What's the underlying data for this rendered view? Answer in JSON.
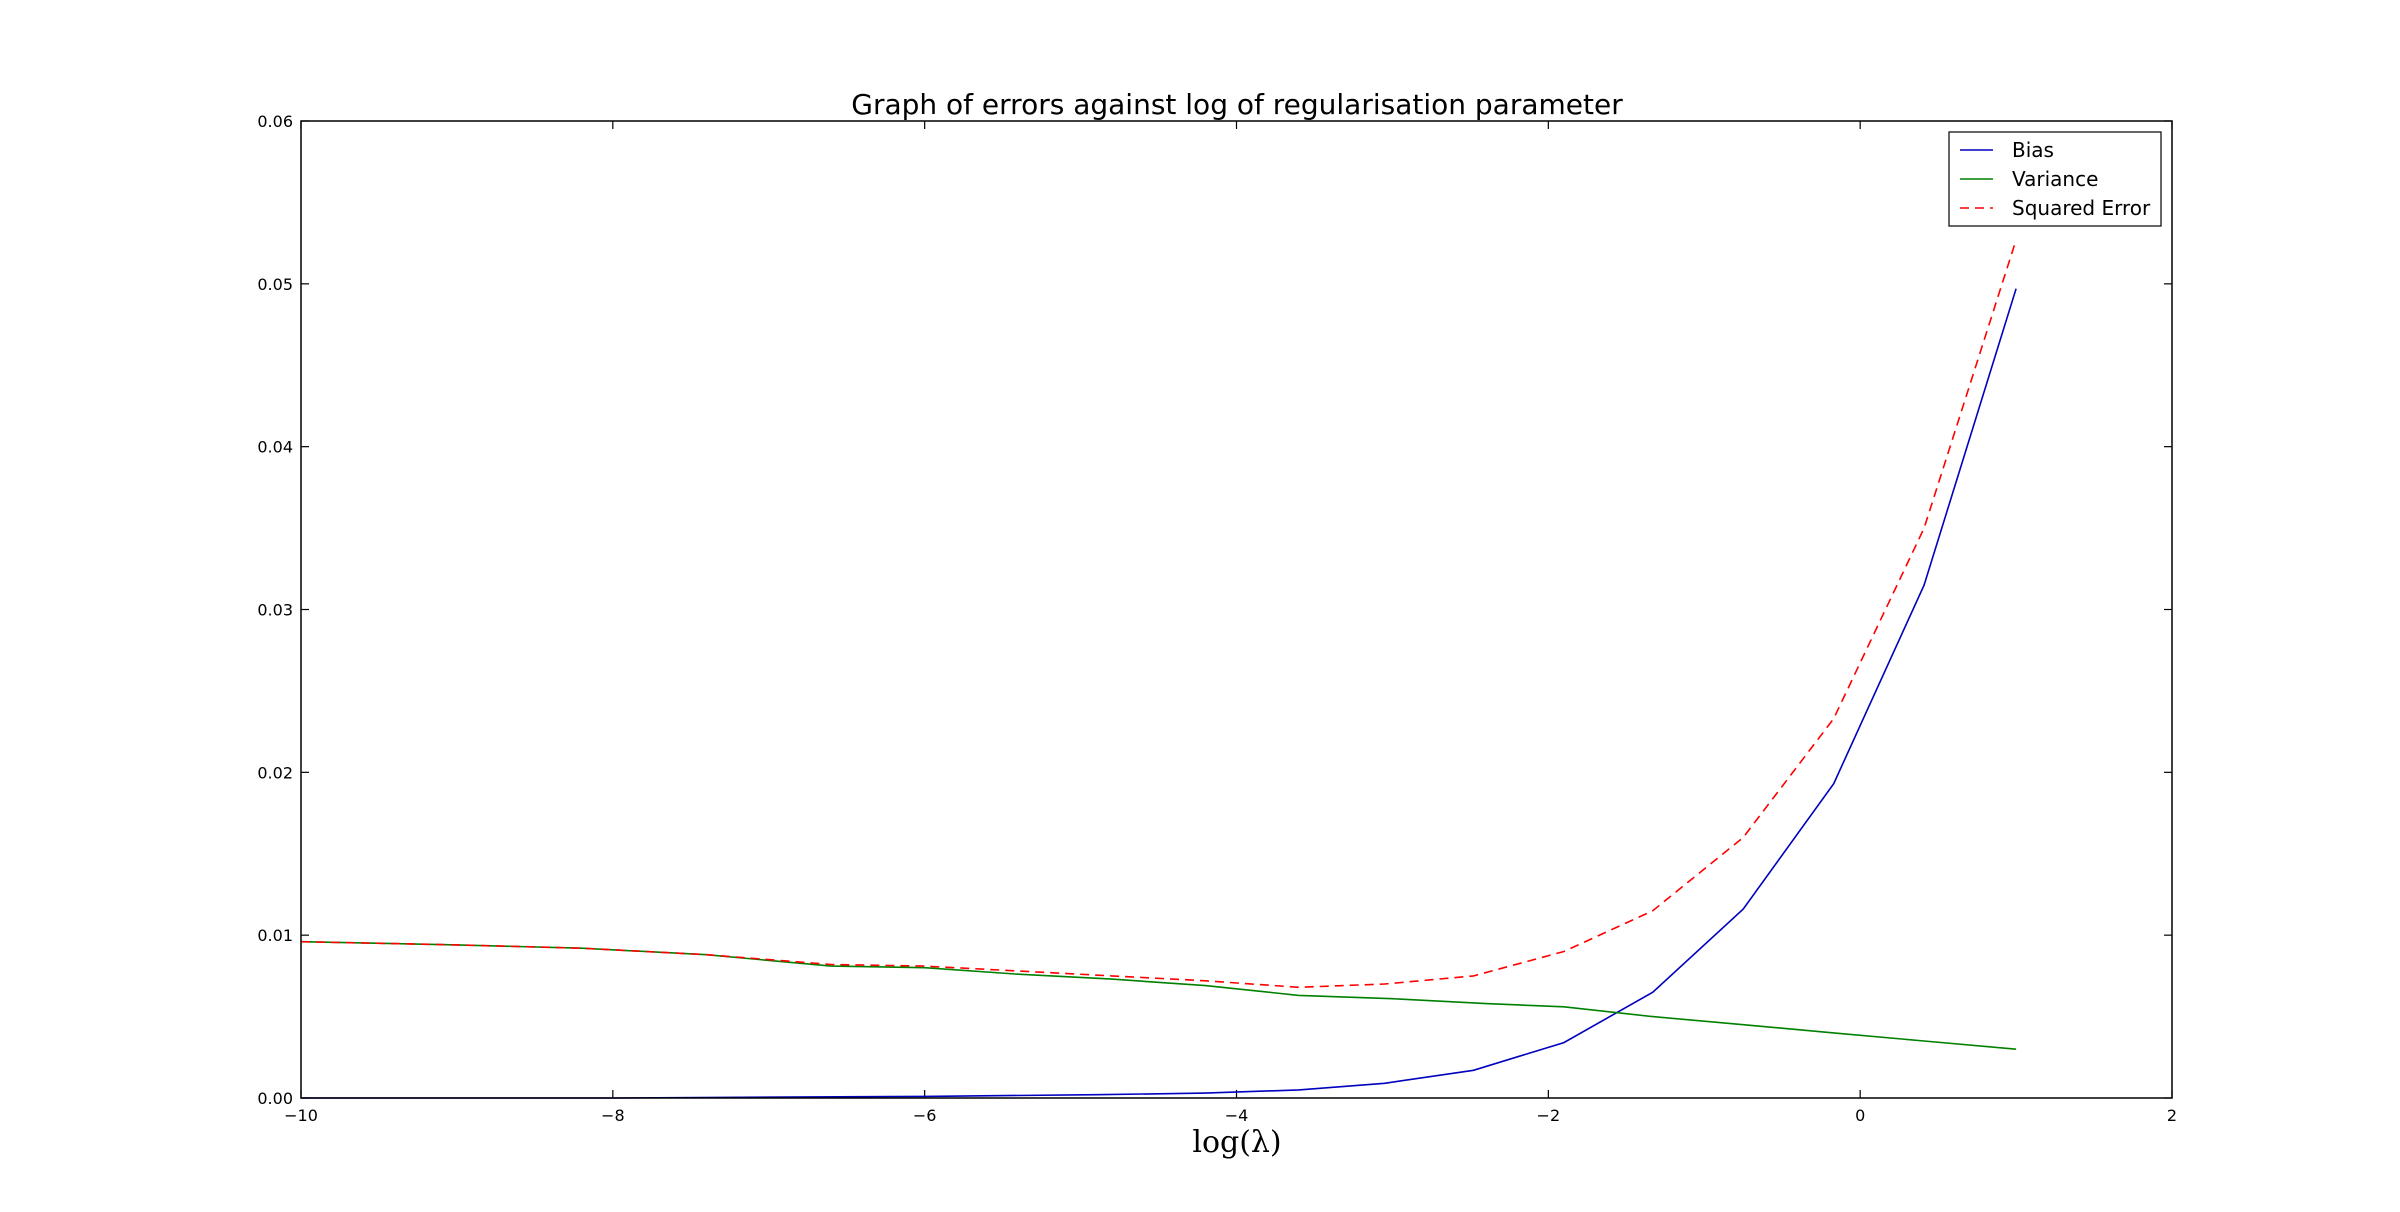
{
  "chart_data": {
    "type": "line",
    "title": "Graph of errors against log of regularisation parameter",
    "xlabel": "log(λ)",
    "ylabel": "",
    "xlim": [
      -10,
      2
    ],
    "ylim": [
      0,
      0.06
    ],
    "xticks": [
      -10,
      -8,
      -6,
      -4,
      -2,
      0,
      2
    ],
    "xtick_labels": [
      "−10",
      "−8",
      "−6",
      "−4",
      "−2",
      "0",
      "2"
    ],
    "yticks": [
      0,
      0.01,
      0.02,
      0.03,
      0.04,
      0.05,
      0.06
    ],
    "ytick_labels": [
      "0.00",
      "0.01",
      "0.02",
      "0.03",
      "0.04",
      "0.05",
      "0.06"
    ],
    "grid": false,
    "legend_position": "top-right",
    "x": [
      -10.0,
      -9.4,
      -8.8,
      -8.2,
      -7.6,
      -7.0,
      -6.4,
      -5.8,
      -5.2,
      -4.6,
      -4.0,
      -3.4,
      -2.8,
      -2.2,
      -1.6,
      -1.0,
      -0.4,
      0.2,
      0.8,
      1.0
    ],
    "series": [
      {
        "name": "Bias",
        "color": "#0000bf",
        "dash": "solid",
        "points": [
          [
            -10.0,
            0.0
          ],
          [
            -8.0,
            0.0
          ],
          [
            -6.0,
            0.0001
          ],
          [
            -4.9,
            0.0002
          ],
          [
            -4.2,
            0.0003
          ],
          [
            -3.6,
            0.0005
          ],
          [
            -3.05,
            0.0009
          ],
          [
            -2.48,
            0.0017
          ],
          [
            -1.9,
            0.0034
          ],
          [
            -1.33,
            0.0065
          ],
          [
            -0.75,
            0.0116
          ],
          [
            -0.17,
            0.0193
          ],
          [
            0.41,
            0.0315
          ],
          [
            1.0,
            0.0497
          ]
        ]
      },
      {
        "name": "Variance",
        "color": "#008000",
        "dash": "solid",
        "points": [
          [
            -10.0,
            0.0096
          ],
          [
            -9.0,
            0.0094
          ],
          [
            -8.2,
            0.0092
          ],
          [
            -7.4,
            0.0088
          ],
          [
            -6.6,
            0.0081
          ],
          [
            -6.0,
            0.008
          ],
          [
            -5.4,
            0.0076
          ],
          [
            -4.8,
            0.0073
          ],
          [
            -4.2,
            0.0069
          ],
          [
            -3.6,
            0.0063
          ],
          [
            -3.0,
            0.0061
          ],
          [
            -2.4,
            0.0058
          ],
          [
            -1.9,
            0.0056
          ],
          [
            -1.33,
            0.005
          ],
          [
            -0.75,
            0.0045
          ],
          [
            -0.17,
            0.004
          ],
          [
            0.41,
            0.0035
          ],
          [
            1.0,
            0.003
          ]
        ]
      },
      {
        "name": "Squared Error",
        "color": "#ff0000",
        "dash": "dashed",
        "points": [
          [
            -10.0,
            0.0096
          ],
          [
            -9.0,
            0.0094
          ],
          [
            -8.2,
            0.0092
          ],
          [
            -7.4,
            0.0088
          ],
          [
            -6.6,
            0.0082
          ],
          [
            -6.0,
            0.0081
          ],
          [
            -5.4,
            0.0078
          ],
          [
            -4.8,
            0.0075
          ],
          [
            -4.2,
            0.0072
          ],
          [
            -3.6,
            0.0068
          ],
          [
            -3.05,
            0.007
          ],
          [
            -2.48,
            0.0075
          ],
          [
            -1.9,
            0.009
          ],
          [
            -1.33,
            0.0115
          ],
          [
            -0.75,
            0.016
          ],
          [
            -0.17,
            0.0233
          ],
          [
            0.41,
            0.035
          ],
          [
            1.0,
            0.0527
          ]
        ]
      }
    ]
  }
}
